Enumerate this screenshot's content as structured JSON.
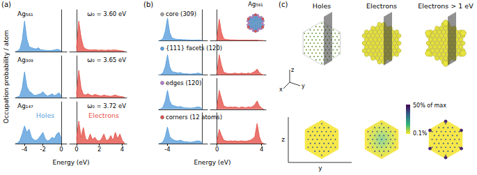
{
  "chart_data": [
    {
      "type": "area",
      "label": "(a)",
      "ylabel": "Occupation probability / atom",
      "xlabel": "Energy (eV)",
      "ylim": [
        0,
        1.3
      ],
      "yticks": [],
      "tick_labels": "x",
      "rows": [
        {
          "title": "Ag₅₆₁",
          "annotation": "ω₀ = 3.60 eV",
          "subplots": [
            {
              "xlim": [
                -5,
                0.6
              ],
              "xticks": [
                -4,
                -2,
                0
              ],
              "color": "#5a9fdc",
              "x": [
                -5,
                -4.75,
                -4.5,
                -4.25,
                -4,
                -3.75,
                -3.5,
                -3.25,
                -3,
                -2.75,
                -2.5,
                -2.25,
                -2,
                -1.75,
                -1.5,
                -1.25,
                -1,
                -0.75,
                -0.5,
                -0.25,
                0
              ],
              "values": [
                0,
                0.02,
                0.08,
                0.35,
                0.95,
                0.4,
                0.15,
                0.12,
                0.1,
                0.08,
                0.12,
                0.06,
                0.05,
                0.04,
                0.03,
                0.03,
                0.04,
                0.05,
                0.07,
                0.06,
                0.02
              ]
            },
            {
              "xlim": [
                -0.6,
                4.4
              ],
              "xticks": [
                0,
                2,
                4
              ],
              "color": "#e5534b",
              "x": [
                0,
                0.2,
                0.4,
                0.6,
                0.8,
                1,
                1.2,
                1.4,
                1.6,
                1.8,
                2,
                2.2,
                2.4,
                2.6,
                2.8,
                3,
                3.2,
                3.4,
                3.6,
                3.8,
                4,
                4.2
              ],
              "values": [
                0.1,
                0.95,
                0.45,
                0.15,
                0.08,
                0.06,
                0.05,
                0.05,
                0.06,
                0.05,
                0.04,
                0.05,
                0.04,
                0.04,
                0.05,
                0.04,
                0.05,
                0.05,
                0.04,
                0.03,
                0.02,
                0.01
              ]
            }
          ]
        },
        {
          "title": "Ag₃₀₉",
          "annotation": "ω₀ = 3.65 eV",
          "subplots": [
            {
              "xlim": [
                -5,
                0.6
              ],
              "xticks": [
                -4,
                -2,
                0
              ],
              "color": "#5a9fdc",
              "x": [
                -5,
                -4.75,
                -4.5,
                -4.25,
                -4,
                -3.75,
                -3.5,
                -3.25,
                -3,
                -2.75,
                -2.5,
                -2.25,
                -2,
                -1.75,
                -1.5,
                -1.25,
                -1,
                -0.75,
                -0.5,
                -0.25,
                0
              ],
              "values": [
                0,
                0.02,
                0.06,
                0.3,
                0.8,
                0.35,
                0.2,
                0.15,
                0.08,
                0.07,
                0.1,
                0.12,
                0.18,
                0.1,
                0.05,
                0.08,
                0.12,
                0.06,
                0.1,
                0.15,
                0.05
              ]
            },
            {
              "xlim": [
                -0.6,
                4.4
              ],
              "xticks": [
                0,
                2,
                4
              ],
              "color": "#e5534b",
              "x": [
                0,
                0.2,
                0.4,
                0.6,
                0.8,
                1,
                1.2,
                1.4,
                1.6,
                1.8,
                2,
                2.2,
                2.4,
                2.6,
                2.8,
                3,
                3.2,
                3.4,
                3.6,
                3.8,
                4,
                4.2
              ],
              "values": [
                0.1,
                0.85,
                0.3,
                0.1,
                0.08,
                0.12,
                0.08,
                0.06,
                0.1,
                0.08,
                0.06,
                0.05,
                0.08,
                0.06,
                0.05,
                0.04,
                0.06,
                0.08,
                0.05,
                0.04,
                0.03,
                0.01
              ]
            }
          ]
        },
        {
          "title": "Ag₁₄₇",
          "annotation": "ω₀ = 3.72 eV",
          "subplots": [
            {
              "name": "Holes",
              "xlim": [
                -5,
                0.6
              ],
              "xticks": [
                -4,
                -2,
                0
              ],
              "color": "#5a9fdc",
              "x": [
                -5,
                -4.75,
                -4.5,
                -4.25,
                -4,
                -3.75,
                -3.5,
                -3.25,
                -3,
                -2.75,
                -2.5,
                -2.25,
                -2,
                -1.75,
                -1.5,
                -1.25,
                -1,
                -0.75,
                -0.5,
                -0.25,
                0
              ],
              "values": [
                0,
                0.02,
                0.1,
                0.3,
                0.55,
                0.35,
                0.45,
                0.2,
                0.12,
                0.1,
                0.15,
                0.25,
                0.35,
                0.15,
                0.08,
                0.12,
                0.2,
                0.15,
                0.3,
                0.35,
                0.15
              ]
            },
            {
              "name": "Electrons",
              "xlim": [
                -0.6,
                4.4
              ],
              "xticks": [
                0,
                2,
                4
              ],
              "color": "#e5534b",
              "x": [
                0,
                0.2,
                0.4,
                0.6,
                0.8,
                1,
                1.2,
                1.4,
                1.6,
                1.8,
                2,
                2.2,
                2.4,
                2.6,
                2.8,
                3,
                3.2,
                3.4,
                3.6,
                3.8,
                4,
                4.2
              ],
              "values": [
                0.15,
                0.7,
                0.2,
                0.5,
                0.15,
                0.1,
                0.3,
                0.12,
                0.2,
                0.1,
                0.08,
                0.15,
                0.3,
                0.1,
                0.12,
                0.25,
                0.1,
                0.35,
                0.15,
                0.3,
                0.1,
                0.02
              ]
            }
          ]
        }
      ]
    },
    {
      "type": "area",
      "label": "(b)",
      "xlabel": "Energy (eV)",
      "inset_title": "Ag₅₆₁",
      "ylim": [
        0,
        1.3
      ],
      "yticks": [],
      "tick_labels": "x",
      "rows": [
        {
          "title": "core (309)",
          "color": "#a0a0a0",
          "subplots": [
            {
              "xlim": [
                -5,
                0.6
              ],
              "xticks": [
                -4
              ],
              "color": "#5a9fdc",
              "x": [
                -5,
                -4.75,
                -4.5,
                -4.25,
                -4,
                -3.75,
                -3.5,
                -3.25,
                -3,
                -2.75,
                -2.5,
                -2.25,
                -2,
                -1.75,
                -1.5,
                -1.25,
                -1,
                -0.75,
                -0.5,
                -0.25,
                0
              ],
              "values": [
                0,
                0.02,
                0.1,
                0.4,
                0.95,
                0.35,
                0.12,
                0.08,
                0.06,
                0.05,
                0.05,
                0.04,
                0.04,
                0.03,
                0.03,
                0.02,
                0.02,
                0.02,
                0.03,
                0.02,
                0.01
              ]
            },
            {
              "xlim": [
                -0.6,
                4.4
              ],
              "xticks": [
                0,
                4
              ],
              "color": "#e5534b",
              "x": [
                0,
                0.2,
                0.4,
                0.6,
                0.8,
                1,
                1.2,
                1.4,
                1.6,
                1.8,
                2,
                2.2,
                2.4,
                2.6,
                2.8,
                3,
                3.2,
                3.4,
                3.6,
                3.8,
                4,
                4.2
              ],
              "values": [
                0.1,
                0.9,
                0.35,
                0.08,
                0.05,
                0.04,
                0.03,
                0.03,
                0.03,
                0.02,
                0.02,
                0.02,
                0.02,
                0.02,
                0.02,
                0.02,
                0.02,
                0.02,
                0.02,
                0.01,
                0.01,
                0
              ]
            }
          ]
        },
        {
          "title": "{111} facets (120)",
          "color": "#5a9fdc",
          "subplots": [
            {
              "xlim": [
                -5,
                0.6
              ],
              "xticks": [
                -4
              ],
              "color": "#5a9fdc",
              "x": [
                -5,
                -4.75,
                -4.5,
                -4.25,
                -4,
                -3.75,
                -3.5,
                -3.25,
                -3,
                -2.75,
                -2.5,
                -2.25,
                -2,
                -1.75,
                -1.5,
                -1.25,
                -1,
                -0.75,
                -0.5,
                -0.25,
                0
              ],
              "values": [
                0,
                0.02,
                0.1,
                0.35,
                0.85,
                0.35,
                0.15,
                0.12,
                0.1,
                0.08,
                0.1,
                0.06,
                0.05,
                0.05,
                0.04,
                0.04,
                0.05,
                0.06,
                0.08,
                0.06,
                0.02
              ]
            },
            {
              "xlim": [
                -0.6,
                4.4
              ],
              "xticks": [
                0,
                4
              ],
              "color": "#e5534b",
              "x": [
                0,
                0.2,
                0.4,
                0.6,
                0.8,
                1,
                1.2,
                1.4,
                1.6,
                1.8,
                2,
                2.2,
                2.4,
                2.6,
                2.8,
                3,
                3.2,
                3.4,
                3.6,
                3.8,
                4,
                4.2
              ],
              "values": [
                0.1,
                0.85,
                0.4,
                0.12,
                0.08,
                0.06,
                0.05,
                0.06,
                0.08,
                0.06,
                0.05,
                0.08,
                0.06,
                0.05,
                0.08,
                0.06,
                0.1,
                0.15,
                0.25,
                0.1,
                0.03,
                0
              ]
            }
          ]
        },
        {
          "title": "edges (120)",
          "color": "#b07cc6",
          "subplots": [
            {
              "xlim": [
                -5,
                0.6
              ],
              "xticks": [
                -4
              ],
              "color": "#5a9fdc",
              "x": [
                -5,
                -4.75,
                -4.5,
                -4.25,
                -4,
                -3.75,
                -3.5,
                -3.25,
                -3,
                -2.75,
                -2.5,
                -2.25,
                -2,
                -1.75,
                -1.5,
                -1.25,
                -1,
                -0.75,
                -0.5,
                -0.25,
                0
              ],
              "values": [
                0,
                0.02,
                0.1,
                0.35,
                0.8,
                0.35,
                0.18,
                0.15,
                0.12,
                0.1,
                0.12,
                0.08,
                0.06,
                0.06,
                0.05,
                0.05,
                0.06,
                0.08,
                0.1,
                0.08,
                0.02
              ]
            },
            {
              "xlim": [
                -0.6,
                4.4
              ],
              "xticks": [
                0,
                4
              ],
              "color": "#e5534b",
              "x": [
                0,
                0.2,
                0.4,
                0.6,
                0.8,
                1,
                1.2,
                1.4,
                1.6,
                1.8,
                2,
                2.2,
                2.4,
                2.6,
                2.8,
                3,
                3.2,
                3.4,
                3.6,
                3.8,
                4,
                4.2
              ],
              "values": [
                0.1,
                0.8,
                0.45,
                0.15,
                0.1,
                0.08,
                0.1,
                0.08,
                0.1,
                0.08,
                0.06,
                0.1,
                0.08,
                0.06,
                0.1,
                0.08,
                0.12,
                0.2,
                0.35,
                0.15,
                0.05,
                0
              ]
            }
          ]
        },
        {
          "title": "corners (12 atoms)",
          "color": "#d9534f",
          "subplots": [
            {
              "xlim": [
                -5,
                0.6
              ],
              "xticks": [
                -4
              ],
              "color": "#5a9fdc",
              "x": [
                -5,
                -4.75,
                -4.5,
                -4.25,
                -4,
                -3.75,
                -3.5,
                -3.25,
                -3,
                -2.75,
                -2.5,
                -2.25,
                -2,
                -1.75,
                -1.5,
                -1.25,
                -1,
                -0.75,
                -0.5,
                -0.25,
                0
              ],
              "values": [
                0,
                0.02,
                0.08,
                0.3,
                0.7,
                0.3,
                0.2,
                0.15,
                0.12,
                0.12,
                0.15,
                0.1,
                0.08,
                0.08,
                0.06,
                0.06,
                0.08,
                0.1,
                0.12,
                0.1,
                0.03
              ]
            },
            {
              "xlim": [
                -0.6,
                4.4
              ],
              "xticks": [
                0,
                4
              ],
              "color": "#e5534b",
              "x": [
                0,
                0.2,
                0.4,
                0.6,
                0.8,
                1,
                1.2,
                1.4,
                1.6,
                1.8,
                2,
                2.2,
                2.4,
                2.6,
                2.8,
                3,
                3.2,
                3.4,
                3.6,
                3.8,
                4,
                4.2
              ],
              "values": [
                0.1,
                0.6,
                0.35,
                0.15,
                0.12,
                0.1,
                0.12,
                0.1,
                0.12,
                0.1,
                0.1,
                0.12,
                0.1,
                0.1,
                0.12,
                0.15,
                0.2,
                0.3,
                0.85,
                0.3,
                0.05,
                0
              ]
            }
          ]
        }
      ]
    }
  ],
  "panel_c": {
    "label": "(c)",
    "titles": [
      "Holes",
      "Electrons",
      "Electrons > 1 eV"
    ],
    "axes_3d": [
      "z",
      "x",
      "y"
    ],
    "map_axes": [
      "z",
      "y"
    ],
    "colorbar": {
      "max_label": "50% of max",
      "min_label": "0.1%"
    }
  }
}
